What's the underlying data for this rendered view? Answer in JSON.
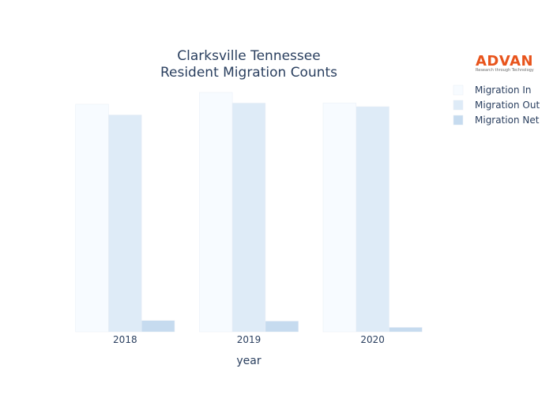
{
  "chart_data": {
    "type": "bar",
    "title_line1": "Clarksville Tennessee",
    "title_line2": "Resident Migration Counts",
    "xlabel": "year",
    "ylabel": "",
    "categories": [
      "2018",
      "2019",
      "2020"
    ],
    "series": [
      {
        "name": "Migration In",
        "color": "#f7fbff",
        "values": [
          19200,
          20200,
          19300
        ]
      },
      {
        "name": "Migration Out",
        "color": "#deebf7",
        "values": [
          18300,
          19300,
          19000
        ]
      },
      {
        "name": "Migration Net",
        "color": "#c6dbef",
        "values": [
          950,
          900,
          370
        ]
      }
    ],
    "ylim": [
      0,
      21000
    ],
    "grid": false,
    "legend_position": "right"
  },
  "logo": {
    "brand": "ADVAN",
    "tagline": "Research through Technology"
  }
}
